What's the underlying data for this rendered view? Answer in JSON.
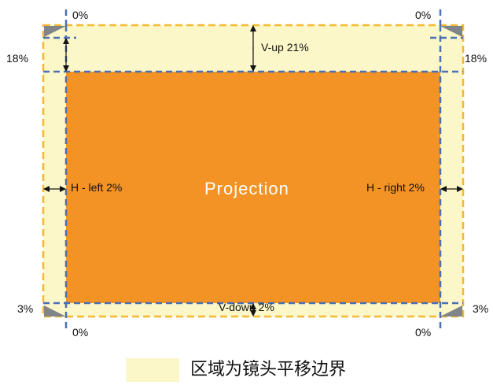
{
  "colors": {
    "boundary_fill": "#FBF7C8",
    "boundary_stroke": "#F5B82E",
    "projection_fill": "#F39325",
    "guide_line": "#4A6FB5",
    "corner_triangle": "#7F8589",
    "arrow": "#111111"
  },
  "projection": {
    "label": "Projection"
  },
  "shifts": {
    "v_up": "V-up 21%",
    "v_down": "V-down 2%",
    "h_left": "H - left 2%",
    "h_right": "H - right 2%"
  },
  "corners": {
    "top_left": "0%",
    "top_right": "0%",
    "bottom_left": "0%",
    "bottom_right": "0%",
    "left_top": "18%",
    "right_top": "18%",
    "left_bottom": "3%",
    "right_bottom": "3%"
  },
  "legend": {
    "label": "区域为镜头平移边界"
  }
}
